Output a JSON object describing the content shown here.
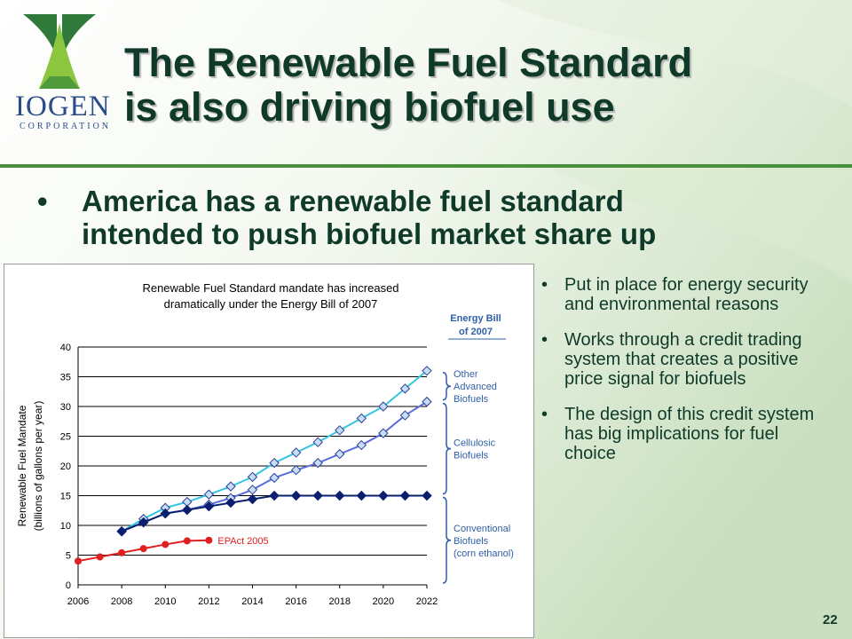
{
  "logo": {
    "name": "IOGEN",
    "sub": "CORPORATION"
  },
  "title": {
    "line1": "The Renewable Fuel Standard",
    "line2": "is also driving biofuel use"
  },
  "main_bullet": {
    "bullet": "•",
    "line1": "America has a renewable fuel standard",
    "line2": "intended to push biofuel market share up"
  },
  "side_bullets": [
    {
      "bullet": "•",
      "text": "Put in place for energy security and environmental reasons"
    },
    {
      "bullet": "•",
      "text": "Works through a credit trading system that creates a positive price signal for biofuels"
    },
    {
      "bullet": "•",
      "text": "The design of this credit system has big implications for fuel choice"
    }
  ],
  "page_number": "22",
  "colors": {
    "title": "#0f3a2a",
    "rule": "#4a8f3c",
    "logo_blue": "#2b4c8a",
    "label_blue": "#2e5fa8",
    "red": "#e02020",
    "navy": "#0a1f6e",
    "cyan": "#33c6e0",
    "periwinkle": "#5b6dd8"
  },
  "chart_data": {
    "type": "line",
    "title_line1": "Renewable Fuel Standard mandate has increased",
    "title_line2": "dramatically under the Energy Bill of 2007",
    "ylabel_line1": "Renewable Fuel Mandate",
    "ylabel_line2": "(billions of gallons per year)",
    "xlim": [
      2006,
      2022
    ],
    "ylim": [
      0,
      40
    ],
    "xticks": [
      "2006",
      "2008",
      "2010",
      "2012",
      "2014",
      "2016",
      "2018",
      "2020",
      "2022"
    ],
    "yticks": [
      "0",
      "5",
      "10",
      "15",
      "20",
      "25",
      "30",
      "35",
      "40"
    ],
    "grid": true,
    "series": [
      {
        "name": "EPAct 2005",
        "color": "#e02020",
        "marker": "circle",
        "x": [
          2006,
          2007,
          2008,
          2009,
          2010,
          2011,
          2012
        ],
        "y": [
          4.0,
          4.7,
          5.4,
          6.1,
          6.8,
          7.4,
          7.5
        ]
      },
      {
        "name": "",
        "color": "#0a1f6e",
        "marker": "diamond-filled",
        "x": [
          2008,
          2009,
          2010,
          2011,
          2012,
          2013,
          2014,
          2015,
          2016,
          2017,
          2018,
          2019,
          2020,
          2021,
          2022
        ],
        "y": [
          9.0,
          10.5,
          12.0,
          12.6,
          13.2,
          13.8,
          14.4,
          15,
          15,
          15,
          15,
          15,
          15,
          15,
          15
        ]
      },
      {
        "name": "",
        "color": "#5b6dd8",
        "marker": "diamond-open",
        "x": [
          2008,
          2009,
          2010,
          2011,
          2012,
          2013,
          2014,
          2015,
          2016,
          2017,
          2018,
          2019,
          2020,
          2021,
          2022
        ],
        "y": [
          9.0,
          10.5,
          12.0,
          12.6,
          13.5,
          14.6,
          16.0,
          18.0,
          19.3,
          20.5,
          22.0,
          23.5,
          25.5,
          28.5,
          30.8
        ]
      },
      {
        "name": "",
        "color": "#33c6e0",
        "marker": "diamond-open",
        "x": [
          2008,
          2009,
          2010,
          2011,
          2012,
          2013,
          2014,
          2015,
          2016,
          2017,
          2018,
          2019,
          2020,
          2021,
          2022
        ],
        "y": [
          9.0,
          11.1,
          12.95,
          13.95,
          15.2,
          16.55,
          18.15,
          20.5,
          22.25,
          24.0,
          26.0,
          28.0,
          30.0,
          33.0,
          36.0
        ]
      }
    ],
    "annotations": {
      "epact_label": "EPAct 2005",
      "energy_bill_line1": "Energy Bill",
      "energy_bill_line2": "of 2007",
      "brace_labels": [
        {
          "lines": [
            "Other",
            "Advanced",
            "Biofuels"
          ],
          "range": [
            30.8,
            36
          ]
        },
        {
          "lines": [
            "Cellulosic",
            "Biofuels"
          ],
          "range": [
            15,
            30.8
          ]
        },
        {
          "lines": [
            "Conventional",
            "Biofuels",
            "(corn ethanol)"
          ],
          "range": [
            0,
            15
          ]
        }
      ]
    }
  }
}
